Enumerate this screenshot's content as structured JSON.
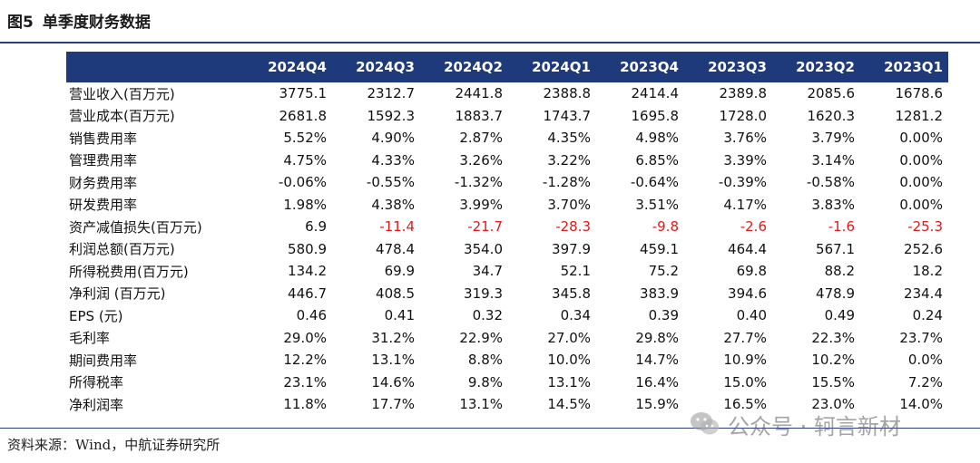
{
  "figure": {
    "number": "图5",
    "title": "单季度财务数据"
  },
  "table": {
    "columns": [
      "2024Q4",
      "2024Q3",
      "2024Q2",
      "2024Q1",
      "2023Q4",
      "2023Q3",
      "2023Q2",
      "2023Q1"
    ],
    "rows": [
      {
        "label": "营业收入(百万元)",
        "values": [
          "3775.1",
          "2312.7",
          "2441.8",
          "2388.8",
          "2414.4",
          "2389.8",
          "2085.6",
          "1678.6"
        ]
      },
      {
        "label": "营业成本(百万元)",
        "values": [
          "2681.8",
          "1592.3",
          "1883.7",
          "1743.7",
          "1695.8",
          "1728.0",
          "1620.3",
          "1281.2"
        ]
      },
      {
        "label": "销售费用率",
        "values": [
          "5.52%",
          "4.90%",
          "2.87%",
          "4.35%",
          "4.98%",
          "3.76%",
          "3.79%",
          "0.00%"
        ]
      },
      {
        "label": "管理费用率",
        "values": [
          "4.75%",
          "4.33%",
          "3.26%",
          "3.22%",
          "6.85%",
          "3.39%",
          "3.14%",
          "0.00%"
        ]
      },
      {
        "label": "财务费用率",
        "values": [
          "-0.06%",
          "-0.55%",
          "-1.32%",
          "-1.28%",
          "-0.64%",
          "-0.39%",
          "-0.58%",
          "0.00%"
        ]
      },
      {
        "label": "研发费用率",
        "values": [
          "1.98%",
          "4.38%",
          "3.99%",
          "3.70%",
          "3.51%",
          "4.17%",
          "3.83%",
          "0.00%"
        ]
      },
      {
        "label": "资产减值损失(百万元)",
        "values": [
          "6.9",
          "-11.4",
          "-21.7",
          "-28.3",
          "-9.8",
          "-2.6",
          "-1.6",
          "-25.3"
        ],
        "neg_highlight": true
      },
      {
        "label": "利润总额(百万元)",
        "values": [
          "580.9",
          "478.4",
          "354.0",
          "397.9",
          "459.1",
          "464.4",
          "567.1",
          "252.6"
        ]
      },
      {
        "label": "所得税费用(百万元)",
        "values": [
          "134.2",
          "69.9",
          "34.7",
          "52.1",
          "75.2",
          "69.8",
          "88.2",
          "18.2"
        ]
      },
      {
        "label": "净利润 (百万元)",
        "values": [
          "446.7",
          "408.5",
          "319.3",
          "345.8",
          "383.9",
          "394.6",
          "478.9",
          "234.4"
        ]
      },
      {
        "label": "EPS (元)",
        "values": [
          "0.46",
          "0.41",
          "0.32",
          "0.34",
          "0.39",
          "0.40",
          "0.49",
          "0.24"
        ]
      },
      {
        "label": "毛利率",
        "values": [
          "29.0%",
          "31.2%",
          "22.9%",
          "27.0%",
          "29.8%",
          "27.7%",
          "22.3%",
          "23.7%"
        ]
      },
      {
        "label": "期间费用率",
        "values": [
          "12.2%",
          "13.1%",
          "8.8%",
          "10.0%",
          "14.7%",
          "10.9%",
          "10.2%",
          "0.0%"
        ]
      },
      {
        "label": "所得税率",
        "values": [
          "23.1%",
          "14.6%",
          "9.8%",
          "13.1%",
          "16.4%",
          "15.0%",
          "15.5%",
          "7.2%"
        ]
      },
      {
        "label": "净利润率",
        "values": [
          "11.8%",
          "17.7%",
          "13.1%",
          "14.5%",
          "15.9%",
          "16.5%",
          "23.0%",
          "14.0%"
        ]
      }
    ]
  },
  "source": "资料来源：Wind，中航证券研究所",
  "watermark": {
    "icon": "wechat-icon",
    "text": "公众号 · 轲言新材"
  },
  "colors": {
    "header_bg": "#1f3a7a",
    "header_text": "#ffffff",
    "negative_text": "#e0191b",
    "rule": "#2b3f7a"
  }
}
